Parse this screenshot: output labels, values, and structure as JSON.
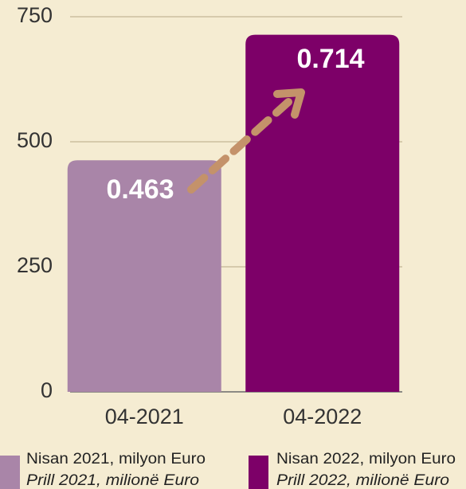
{
  "chart_data": {
    "type": "bar",
    "categories": [
      "04-2021",
      "04-2022"
    ],
    "values": [
      463,
      714
    ],
    "value_labels": [
      "0.463",
      "0.714"
    ],
    "colors": [
      "#a985a8",
      "#7d0068"
    ],
    "ylim": [
      0,
      750
    ],
    "yticks": [
      0,
      250,
      500,
      750
    ],
    "grid": true,
    "legend": [
      {
        "label": "Nisan 2021, milyon Euro",
        "label_alt": "Prill 2021, milionë Euro"
      },
      {
        "label": "Nisan 2022, milyon Euro",
        "label_alt": "Prill 2022, milionë Euro"
      }
    ]
  }
}
